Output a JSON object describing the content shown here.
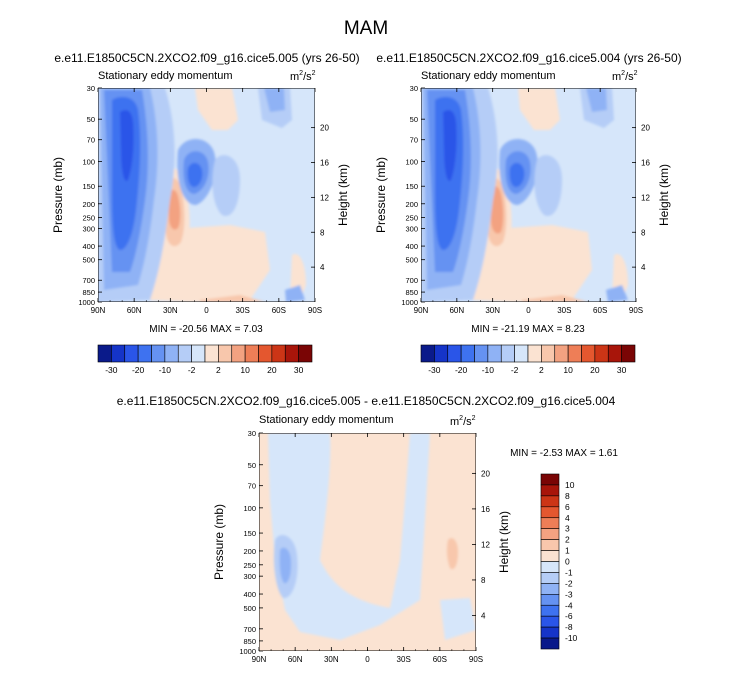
{
  "page": {
    "title": "MAM"
  },
  "panels": [
    {
      "id": "p1",
      "case_title": "e.e11.E1850C5CN.2XCO2.f09_g16.cice5.005 (yrs 26-50)",
      "left_label": "Stationary eddy momentum",
      "units_base": "m",
      "units_sup1": "2",
      "units_mid": "/s",
      "units_sup2": "2",
      "stats": "MIN = -20.56   MAX =  7.03"
    },
    {
      "id": "p2",
      "case_title": "e.e11.E1850C5CN.2XCO2.f09_g16.cice5.004 (yrs 26-50)",
      "left_label": "Stationary eddy momentum",
      "units_base": "m",
      "units_sup1": "2",
      "units_mid": "/s",
      "units_sup2": "2",
      "stats": "MIN = -21.19   MAX =  8.23"
    },
    {
      "id": "p3",
      "case_title": "e.e11.E1850C5CN.2XCO2.f09_g16.cice5.005 - e.e11.E1850C5CN.2XCO2.f09_g16.cice5.004",
      "left_label": "Stationary eddy momentum",
      "units_base": "m",
      "units_sup1": "2",
      "units_mid": "/s",
      "units_sup2": "2",
      "stats": "MIN = -2.53   MAX =  1.61"
    }
  ],
  "chart_data": [
    {
      "type": "heatmap",
      "title": "e.e11.E1850C5CN.2XCO2.f09_g16.cice5.005 (yrs 26-50)",
      "subtitle": "Stationary eddy momentum",
      "xlabel": "",
      "ylabel": "Pressure (mb)",
      "y2label": "Height (km)",
      "xticks": [
        "90N",
        "60N",
        "30N",
        "0",
        "30S",
        "60S",
        "90S"
      ],
      "yticks": [
        30,
        50,
        70,
        100,
        150,
        200,
        250,
        300,
        400,
        500,
        700,
        850,
        1000
      ],
      "y2ticks": [
        4,
        8,
        12,
        16,
        20
      ],
      "min": -20.56,
      "max": 7.03,
      "colorbar_levels": [
        -30,
        -20,
        -10,
        -2,
        2,
        10,
        20,
        30
      ],
      "colorbar_position": "bottom"
    },
    {
      "type": "heatmap",
      "title": "e.e11.E1850C5CN.2XCO2.f09_g16.cice5.004 (yrs 26-50)",
      "subtitle": "Stationary eddy momentum",
      "xlabel": "",
      "ylabel": "Pressure (mb)",
      "y2label": "Height (km)",
      "xticks": [
        "90N",
        "60N",
        "30N",
        "0",
        "30S",
        "60S",
        "90S"
      ],
      "yticks": [
        30,
        50,
        70,
        100,
        150,
        200,
        250,
        300,
        400,
        500,
        700,
        850,
        1000
      ],
      "y2ticks": [
        4,
        8,
        12,
        16,
        20
      ],
      "min": -21.19,
      "max": 8.23,
      "colorbar_levels": [
        -30,
        -20,
        -10,
        -2,
        2,
        10,
        20,
        30
      ],
      "colorbar_position": "bottom"
    },
    {
      "type": "heatmap",
      "title": "e.e11.E1850C5CN.2XCO2.f09_g16.cice5.005 - e.e11.E1850C5CN.2XCO2.f09_g16.cice5.004",
      "subtitle": "Stationary eddy momentum",
      "xlabel": "",
      "ylabel": "Pressure (mb)",
      "y2label": "Height (km)",
      "xticks": [
        "90N",
        "60N",
        "30N",
        "0",
        "30S",
        "60S",
        "90S"
      ],
      "yticks": [
        30,
        50,
        70,
        100,
        150,
        200,
        250,
        300,
        400,
        500,
        700,
        850,
        1000
      ],
      "y2ticks": [
        4,
        8,
        12,
        16,
        20
      ],
      "min": -2.53,
      "max": 1.61,
      "colorbar_levels": [
        10,
        8,
        6,
        4,
        3,
        2,
        1,
        0,
        -1,
        -2,
        -3,
        -4,
        -6,
        -8,
        -10
      ],
      "colorbar_position": "right"
    }
  ],
  "colorbars": {
    "top": {
      "labels": [
        "-30",
        "-20",
        "-10",
        "-2",
        "2",
        "10",
        "20",
        "30"
      ],
      "colors": [
        "#0a1a8a",
        "#1534c8",
        "#2a55e8",
        "#3e72f0",
        "#6592f2",
        "#8fb2f5",
        "#b5cdf7",
        "#d6e6fa",
        "#fbe3d2",
        "#f8c7ac",
        "#f3a281",
        "#ee7e57",
        "#e4572f",
        "#cc3516",
        "#a8150a",
        "#7a0505"
      ]
    },
    "diff": {
      "labels": [
        "10",
        "8",
        "6",
        "4",
        "3",
        "2",
        "1",
        "0",
        "-1",
        "-2",
        "-3",
        "-4",
        "-6",
        "-8",
        "-10"
      ],
      "colors": [
        "#7a0505",
        "#a8150a",
        "#cc3516",
        "#e4572f",
        "#ee7e57",
        "#f3a281",
        "#f8c7ac",
        "#fbe3d2",
        "#d6e6fa",
        "#b5cdf7",
        "#8fb2f5",
        "#6592f2",
        "#3e72f0",
        "#2a55e8",
        "#1534c8",
        "#0a1a8a"
      ]
    }
  },
  "field_colors": {
    "neutral_blue": "#d6e6fa",
    "neutral_red": "#fbe3d2",
    "blue1": "#b5cdf7",
    "blue2": "#8fb2f5",
    "blue3": "#6592f2",
    "blue4": "#3e72f0",
    "red1": "#f8c7ac",
    "red2": "#f3a281"
  }
}
